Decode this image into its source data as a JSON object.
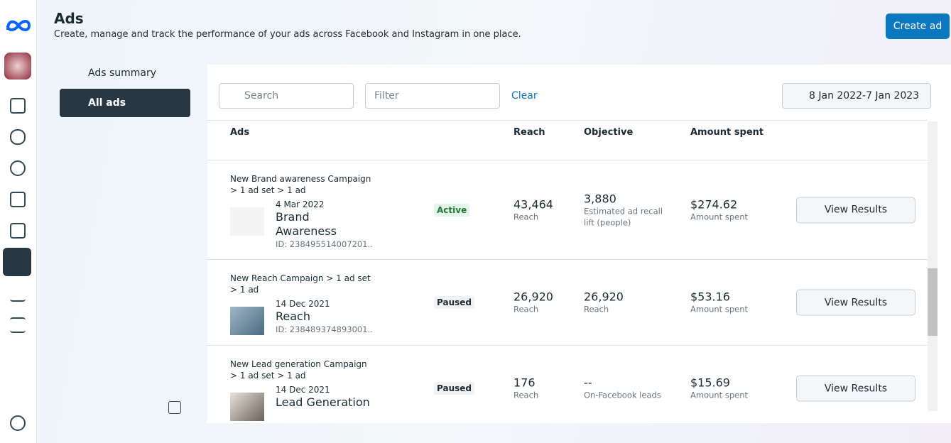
{
  "header": {
    "title": "Ads",
    "subtitle": "Create, manage and track the performance of your ads across Facebook and Instagram in one place.",
    "create_button": "Create ad"
  },
  "nav": [
    {
      "label": "Ads summary",
      "selected": false
    },
    {
      "label": "All ads",
      "selected": true
    }
  ],
  "toolbar": {
    "search_placeholder": "Search",
    "filter_placeholder": "Filter",
    "clear": "Clear",
    "date_range": "8 Jan 2022-7 Jan 2023"
  },
  "table": {
    "columns": [
      "Ads",
      "Reach",
      "Objective",
      "Amount spent"
    ],
    "rows": [
      {
        "campaign": "New Brand awareness Campaign > 1 ad set > 1 ad",
        "date": "4 Mar 2022",
        "name": "Brand Awareness",
        "id": "ID: 238495514007201...",
        "status": "Active",
        "reach": "43,464",
        "reach_label": "Reach",
        "objective_value": "3,880",
        "objective_label": "Estimated ad recall lift (people)",
        "amount": "$274.62",
        "amount_label": "Amount spent",
        "action": "View Results"
      },
      {
        "campaign": "New Reach Campaign > 1 ad set > 1 ad",
        "date": "14 Dec 2021",
        "name": "Reach",
        "id": "ID: 238489374893001...",
        "status": "Paused",
        "reach": "26,920",
        "reach_label": "Reach",
        "objective_value": "26,920",
        "objective_label": "Reach",
        "amount": "$53.16",
        "amount_label": "Amount spent",
        "action": "View Results"
      },
      {
        "campaign": "New Lead generation Campaign > 1 ad set > 1 ad",
        "date": "14 Dec 2021",
        "name": "Lead Generation",
        "status": "Paused",
        "reach": "176",
        "reach_label": "Reach",
        "objective_value": "--",
        "objective_label": "On-Facebook leads",
        "amount": "$15.69",
        "amount_label": "Amount spent",
        "action": "View Results"
      }
    ]
  }
}
